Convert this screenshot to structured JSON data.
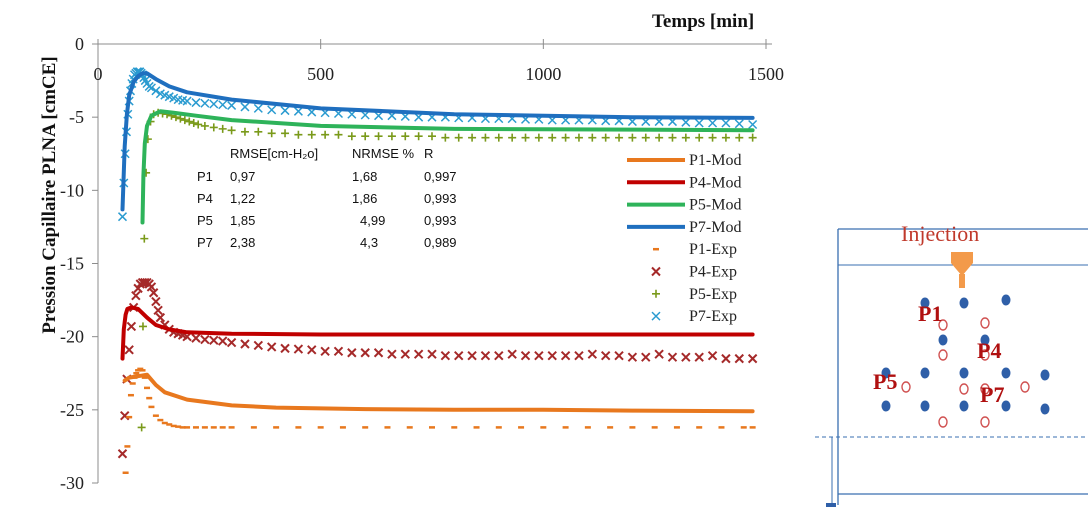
{
  "chart_data": {
    "type": "line",
    "xlabel": "Temps [min]",
    "ylabel": "Pression Capillaire PLNA [cmCE]",
    "xlim": [
      0,
      1500
    ],
    "ylim": [
      -30,
      0
    ],
    "x_ticks": [
      "0",
      "500",
      "1000",
      "1500"
    ],
    "y_ticks": [
      "0",
      "-5",
      "-10",
      "-15",
      "-20",
      "-25",
      "-30"
    ],
    "legend_position": "right",
    "series": [
      {
        "name": "P1-Mod",
        "kind": "line",
        "color": "#e8781e",
        "x": [
          60,
          70,
          90,
          110,
          130,
          150,
          200,
          300,
          400,
          600,
          800,
          1000,
          1200,
          1470
        ],
        "y": [
          -23.0,
          -22.8,
          -22.7,
          -22.6,
          -23.3,
          -23.8,
          -24.3,
          -24.7,
          -24.85,
          -24.95,
          -25.0,
          -25.0,
          -25.05,
          -25.1
        ]
      },
      {
        "name": "P4-Mod",
        "kind": "line",
        "color": "#c00000",
        "x": [
          55,
          58,
          62,
          66,
          75,
          90,
          110,
          130,
          160,
          200,
          300,
          500,
          800,
          1200,
          1470
        ],
        "y": [
          -21.5,
          -19.5,
          -18.5,
          -18.1,
          -18.0,
          -18.1,
          -18.7,
          -19.2,
          -19.5,
          -19.7,
          -19.8,
          -19.85,
          -19.85,
          -19.85,
          -19.85
        ]
      },
      {
        "name": "P5-Mod",
        "kind": "line",
        "color": "#2eb35a",
        "x": [
          100,
          102,
          105,
          110,
          120,
          140,
          170,
          220,
          300,
          500,
          800,
          1200,
          1470
        ],
        "y": [
          -12.2,
          -9.0,
          -6.8,
          -5.6,
          -4.9,
          -4.6,
          -4.7,
          -4.9,
          -5.2,
          -5.6,
          -5.8,
          -5.85,
          -5.9
        ]
      },
      {
        "name": "P7-Mod",
        "kind": "line",
        "color": "#1f6fbf",
        "x": [
          55,
          60,
          65,
          70,
          80,
          90,
          100,
          110,
          130,
          160,
          200,
          300,
          500,
          800,
          1200,
          1470
        ],
        "y": [
          -11.3,
          -7.0,
          -4.8,
          -3.5,
          -2.6,
          -2.2,
          -2.0,
          -2.0,
          -2.4,
          -2.9,
          -3.3,
          -3.8,
          -4.4,
          -4.8,
          -5.0,
          -5.05
        ]
      },
      {
        "name": "P1-Exp",
        "kind": "dash",
        "color": "#e8781e",
        "x": [
          62,
          66,
          70,
          74,
          78,
          82,
          86,
          90,
          95,
          100,
          105,
          110,
          115,
          120,
          130,
          140,
          150,
          160,
          170,
          180,
          190,
          200,
          220,
          240,
          260,
          280,
          300,
          350,
          400,
          450,
          500,
          550,
          600,
          650,
          700,
          750,
          800,
          850,
          900,
          950,
          1000,
          1050,
          1100,
          1150,
          1200,
          1250,
          1300,
          1350,
          1400,
          1450,
          1470
        ],
        "y": [
          -29.3,
          -27.5,
          -25.5,
          -24.0,
          -23.2,
          -22.8,
          -22.5,
          -22.3,
          -22.2,
          -22.3,
          -22.8,
          -23.5,
          -24.2,
          -24.8,
          -25.4,
          -25.7,
          -25.9,
          -26.0,
          -26.1,
          -26.15,
          -26.2,
          -26.2,
          -26.2,
          -26.2,
          -26.2,
          -26.2,
          -26.2,
          -26.2,
          -26.2,
          -26.2,
          -26.2,
          -26.2,
          -26.2,
          -26.2,
          -26.2,
          -26.2,
          -26.2,
          -26.2,
          -26.2,
          -26.2,
          -26.2,
          -26.2,
          -26.2,
          -26.2,
          -26.2,
          -26.2,
          -26.2,
          -26.2,
          -26.2,
          -26.2,
          -26.2
        ]
      },
      {
        "name": "P4-Exp",
        "kind": "cross",
        "color": "#a52a2a",
        "x": [
          55,
          60,
          65,
          70,
          75,
          80,
          85,
          90,
          95,
          100,
          105,
          110,
          115,
          120,
          125,
          130,
          135,
          140,
          150,
          160,
          170,
          180,
          190,
          200,
          220,
          240,
          260,
          280,
          300,
          330,
          360,
          390,
          420,
          450,
          480,
          510,
          540,
          570,
          600,
          630,
          660,
          690,
          720,
          750,
          780,
          810,
          840,
          870,
          900,
          930,
          960,
          990,
          1020,
          1050,
          1080,
          1110,
          1140,
          1170,
          1200,
          1230,
          1260,
          1290,
          1320,
          1350,
          1380,
          1410,
          1440,
          1470
        ],
        "y": [
          -28.0,
          -25.4,
          -22.9,
          -20.9,
          -19.3,
          -18.0,
          -17.2,
          -16.7,
          -16.4,
          -16.3,
          -16.3,
          -16.3,
          -16.4,
          -16.6,
          -17.0,
          -17.6,
          -18.2,
          -18.7,
          -19.2,
          -19.5,
          -19.7,
          -19.8,
          -19.9,
          -20.0,
          -20.1,
          -20.2,
          -20.25,
          -20.3,
          -20.4,
          -20.5,
          -20.6,
          -20.7,
          -20.8,
          -20.85,
          -20.9,
          -21.0,
          -21.0,
          -21.1,
          -21.1,
          -21.1,
          -21.2,
          -21.2,
          -21.2,
          -21.2,
          -21.3,
          -21.3,
          -21.3,
          -21.3,
          -21.3,
          -21.2,
          -21.3,
          -21.3,
          -21.3,
          -21.3,
          -21.3,
          -21.2,
          -21.3,
          -21.3,
          -21.4,
          -21.4,
          -21.2,
          -21.4,
          -21.4,
          -21.4,
          -21.3,
          -21.5,
          -21.5,
          -21.5
        ]
      },
      {
        "name": "P5-Exp",
        "kind": "plus",
        "color": "#7a9a1a",
        "x": [
          98,
          101,
          104,
          108,
          112,
          118,
          125,
          135,
          145,
          155,
          165,
          175,
          185,
          195,
          205,
          215,
          225,
          240,
          260,
          280,
          300,
          330,
          360,
          390,
          420,
          450,
          480,
          510,
          540,
          570,
          600,
          630,
          660,
          690,
          720,
          750,
          780,
          810,
          840,
          870,
          900,
          930,
          960,
          990,
          1020,
          1050,
          1080,
          1110,
          1140,
          1170,
          1200,
          1230,
          1260,
          1290,
          1320,
          1350,
          1380,
          1410,
          1440,
          1470
        ],
        "y": [
          -26.2,
          -19.3,
          -13.3,
          -8.8,
          -6.5,
          -5.3,
          -4.8,
          -4.7,
          -4.75,
          -4.8,
          -4.9,
          -5.0,
          -5.1,
          -5.2,
          -5.3,
          -5.4,
          -5.5,
          -5.6,
          -5.7,
          -5.8,
          -5.9,
          -6.0,
          -6.0,
          -6.1,
          -6.1,
          -6.2,
          -6.2,
          -6.2,
          -6.2,
          -6.3,
          -6.3,
          -6.3,
          -6.3,
          -6.3,
          -6.3,
          -6.3,
          -6.4,
          -6.4,
          -6.4,
          -6.4,
          -6.4,
          -6.4,
          -6.4,
          -6.4,
          -6.4,
          -6.4,
          -6.4,
          -6.4,
          -6.4,
          -6.4,
          -6.4,
          -6.4,
          -6.4,
          -6.4,
          -6.4,
          -6.4,
          -6.4,
          -6.4,
          -6.4,
          -6.4
        ]
      },
      {
        "name": "P7-Exp",
        "kind": "x",
        "color": "#2a9bd0",
        "x": [
          55,
          58,
          61,
          64,
          67,
          70,
          73,
          76,
          79,
          82,
          85,
          88,
          91,
          94,
          97,
          100,
          103,
          106,
          110,
          115,
          120,
          130,
          140,
          150,
          160,
          170,
          180,
          190,
          200,
          220,
          240,
          260,
          280,
          300,
          330,
          360,
          390,
          420,
          450,
          480,
          510,
          540,
          570,
          600,
          630,
          660,
          690,
          720,
          750,
          780,
          810,
          840,
          870,
          900,
          930,
          960,
          990,
          1020,
          1050,
          1080,
          1110,
          1140,
          1170,
          1200,
          1230,
          1260,
          1290,
          1320,
          1350,
          1380,
          1410,
          1440,
          1470
        ],
        "y": [
          -11.8,
          -9.5,
          -7.5,
          -6.0,
          -4.8,
          -3.9,
          -3.2,
          -2.7,
          -2.4,
          -2.1,
          -2.0,
          -1.9,
          -1.9,
          -1.9,
          -2.0,
          -2.1,
          -2.3,
          -2.5,
          -2.7,
          -2.9,
          -3.0,
          -3.2,
          -3.4,
          -3.5,
          -3.6,
          -3.7,
          -3.8,
          -3.85,
          -3.9,
          -4.0,
          -4.05,
          -4.1,
          -4.15,
          -4.2,
          -4.3,
          -4.4,
          -4.5,
          -4.55,
          -4.6,
          -4.65,
          -4.7,
          -4.75,
          -4.8,
          -4.85,
          -4.9,
          -4.9,
          -4.95,
          -5.0,
          -5.0,
          -5.0,
          -5.05,
          -5.05,
          -5.1,
          -5.1,
          -5.1,
          -5.15,
          -5.15,
          -5.2,
          -5.2,
          -5.2,
          -5.2,
          -5.25,
          -5.25,
          -5.3,
          -5.3,
          -5.3,
          -5.3,
          -5.35,
          -5.4,
          -5.4,
          -5.4,
          -5.45,
          -5.5
        ]
      }
    ]
  },
  "stats_table": {
    "headers": [
      "",
      "RMSE[cm-H₂o]",
      "NRMSE %",
      "R"
    ],
    "rows": [
      [
        "P1",
        "0,97",
        "1,68",
        "0,997"
      ],
      [
        "P4",
        "1,22",
        "1,86",
        "0,993"
      ],
      [
        "P5",
        "1,85",
        "4,99",
        "0,993"
      ],
      [
        "P7",
        "2,38",
        "4,3",
        "0,989"
      ]
    ]
  },
  "schematic": {
    "injection_label": "Injection",
    "labels": [
      "P1",
      "P4",
      "P5",
      "P7"
    ],
    "colors": {
      "filled": "#2f5fa8",
      "open": "#d05050",
      "frame": "#3a6fb0",
      "arrow": "#f39a4a",
      "label": "#b01010"
    }
  }
}
